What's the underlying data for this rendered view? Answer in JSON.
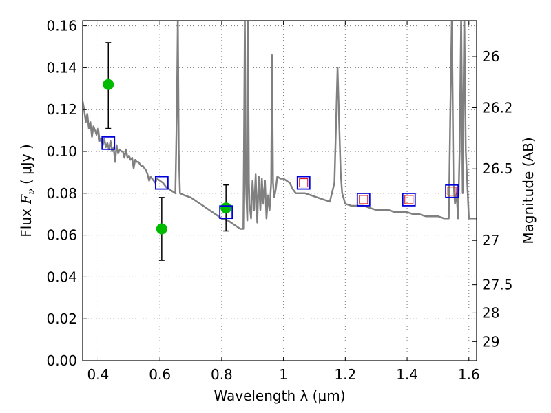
{
  "chart_data": {
    "type": "scatter",
    "title": "",
    "xlabel": "Wavelength  λ (μm)",
    "ylabel": {
      "prefix": "Flux  ",
      "symbol": "F",
      "subscript": "ν",
      "unit": "  ( μJy )"
    },
    "ylabel_right": "Magnitude (AB)",
    "xlim": [
      0.35,
      1.625
    ],
    "ylim": [
      0.0,
      0.1625
    ],
    "grid": true,
    "x_ticks": [
      0.4,
      0.6,
      0.8,
      1.0,
      1.2,
      1.4,
      1.6
    ],
    "x_tick_labels": [
      "0.4",
      "0.6",
      "0.8",
      "1",
      "1.2",
      "1.4",
      "1.6"
    ],
    "y_ticks": [
      0.0,
      0.02,
      0.04,
      0.06,
      0.08,
      0.1,
      0.12,
      0.14,
      0.16
    ],
    "y_tick_labels": [
      "0.00",
      "0.02",
      "0.04",
      "0.06",
      "0.08",
      "0.10",
      "0.12",
      "0.14",
      "0.16"
    ],
    "right_ticks": [
      {
        "label": "26",
        "flux": 0.1454
      },
      {
        "label": "26.2",
        "flux": 0.1209
      },
      {
        "label": "26.5",
        "flux": 0.0917
      },
      {
        "label": "27",
        "flux": 0.0575
      },
      {
        "label": "27.5",
        "flux": 0.0363
      },
      {
        "label": "28",
        "flux": 0.0229
      },
      {
        "label": "29",
        "flux": 0.0091
      }
    ],
    "colors": {
      "model": "#808080",
      "observed": "#00bb00",
      "model_photometry": "#0000dd",
      "inner_square": "#dd0000",
      "errorbar": "#000000",
      "grid": "#777777"
    },
    "series": [
      {
        "kind": "line",
        "points": [
          [
            0.35,
            0.124
          ],
          [
            0.355,
            0.12
          ],
          [
            0.36,
            0.114
          ],
          [
            0.365,
            0.118
          ],
          [
            0.37,
            0.111
          ],
          [
            0.375,
            0.114
          ],
          [
            0.38,
            0.107
          ],
          [
            0.385,
            0.112
          ],
          [
            0.39,
            0.11
          ],
          [
            0.395,
            0.108
          ],
          [
            0.4,
            0.111
          ],
          [
            0.405,
            0.105
          ],
          [
            0.41,
            0.106
          ],
          [
            0.415,
            0.103
          ],
          [
            0.42,
            0.106
          ],
          [
            0.425,
            0.102
          ],
          [
            0.43,
            0.104
          ],
          [
            0.435,
            0.101
          ],
          [
            0.44,
            0.105
          ],
          [
            0.445,
            0.1
          ],
          [
            0.45,
            0.102
          ],
          [
            0.455,
            0.095
          ],
          [
            0.46,
            0.103
          ],
          [
            0.465,
            0.099
          ],
          [
            0.47,
            0.101
          ],
          [
            0.475,
            0.1
          ],
          [
            0.48,
            0.1
          ],
          [
            0.485,
            0.097
          ],
          [
            0.49,
            0.101
          ],
          [
            0.495,
            0.097
          ],
          [
            0.5,
            0.098
          ],
          [
            0.505,
            0.096
          ],
          [
            0.51,
            0.097
          ],
          [
            0.515,
            0.092
          ],
          [
            0.52,
            0.096
          ],
          [
            0.525,
            0.095
          ],
          [
            0.53,
            0.095
          ],
          [
            0.535,
            0.094
          ],
          [
            0.54,
            0.093
          ],
          [
            0.545,
            0.093
          ],
          [
            0.55,
            0.092
          ],
          [
            0.555,
            0.091
          ],
          [
            0.56,
            0.089
          ],
          [
            0.565,
            0.086
          ],
          [
            0.57,
            0.088
          ],
          [
            0.575,
            0.087
          ],
          [
            0.58,
            0.086
          ],
          [
            0.585,
            0.085
          ],
          [
            0.59,
            0.087
          ],
          [
            0.6,
            0.086
          ],
          [
            0.61,
            0.085
          ],
          [
            0.62,
            0.083
          ],
          [
            0.63,
            0.082
          ],
          [
            0.64,
            0.081
          ],
          [
            0.65,
            0.08
          ],
          [
            0.655,
            0.12
          ],
          [
            0.658,
            0.165
          ],
          [
            0.661,
            0.1
          ],
          [
            0.665,
            0.08
          ],
          [
            0.68,
            0.079
          ],
          [
            0.7,
            0.078
          ],
          [
            0.72,
            0.076
          ],
          [
            0.74,
            0.074
          ],
          [
            0.76,
            0.072
          ],
          [
            0.78,
            0.07
          ],
          [
            0.8,
            0.068
          ],
          [
            0.82,
            0.067
          ],
          [
            0.84,
            0.065
          ],
          [
            0.86,
            0.063
          ],
          [
            0.87,
            0.063
          ],
          [
            0.872,
            0.1
          ],
          [
            0.875,
            0.165
          ],
          [
            0.878,
            0.09
          ],
          [
            0.88,
            0.078
          ],
          [
            0.883,
            0.067
          ],
          [
            0.885,
            0.165
          ],
          [
            0.888,
            0.085
          ],
          [
            0.89,
            0.075
          ],
          [
            0.895,
            0.068
          ],
          [
            0.9,
            0.086
          ],
          [
            0.905,
            0.072
          ],
          [
            0.91,
            0.089
          ],
          [
            0.915,
            0.066
          ],
          [
            0.92,
            0.088
          ],
          [
            0.925,
            0.072
          ],
          [
            0.93,
            0.087
          ],
          [
            0.935,
            0.075
          ],
          [
            0.94,
            0.086
          ],
          [
            0.945,
            0.068
          ],
          [
            0.95,
            0.079
          ],
          [
            0.955,
            0.072
          ],
          [
            0.96,
            0.085
          ],
          [
            0.963,
            0.146
          ],
          [
            0.966,
            0.085
          ],
          [
            0.97,
            0.078
          ],
          [
            0.975,
            0.082
          ],
          [
            0.98,
            0.088
          ],
          [
            0.99,
            0.087
          ],
          [
            1.0,
            0.087
          ],
          [
            1.01,
            0.086
          ],
          [
            1.02,
            0.085
          ],
          [
            1.03,
            0.082
          ],
          [
            1.04,
            0.08
          ],
          [
            1.05,
            0.08
          ],
          [
            1.07,
            0.08
          ],
          [
            1.09,
            0.079
          ],
          [
            1.11,
            0.078
          ],
          [
            1.13,
            0.077
          ],
          [
            1.15,
            0.076
          ],
          [
            1.165,
            0.085
          ],
          [
            1.175,
            0.14
          ],
          [
            1.185,
            0.09
          ],
          [
            1.19,
            0.08
          ],
          [
            1.2,
            0.075
          ],
          [
            1.22,
            0.074
          ],
          [
            1.24,
            0.074
          ],
          [
            1.26,
            0.074
          ],
          [
            1.28,
            0.073
          ],
          [
            1.3,
            0.072
          ],
          [
            1.32,
            0.072
          ],
          [
            1.34,
            0.072
          ],
          [
            1.36,
            0.071
          ],
          [
            1.38,
            0.071
          ],
          [
            1.4,
            0.071
          ],
          [
            1.42,
            0.07
          ],
          [
            1.44,
            0.07
          ],
          [
            1.46,
            0.069
          ],
          [
            1.48,
            0.069
          ],
          [
            1.5,
            0.069
          ],
          [
            1.52,
            0.068
          ],
          [
            1.535,
            0.068
          ],
          [
            1.54,
            0.12
          ],
          [
            1.545,
            0.165
          ],
          [
            1.55,
            0.085
          ],
          [
            1.555,
            0.075
          ],
          [
            1.56,
            0.08
          ],
          [
            1.565,
            0.068
          ],
          [
            1.57,
            0.1
          ],
          [
            1.575,
            0.165
          ],
          [
            1.58,
            0.08
          ],
          [
            1.585,
            0.165
          ],
          [
            1.59,
            0.1
          ],
          [
            1.6,
            0.068
          ],
          [
            1.61,
            0.068
          ],
          [
            1.625,
            0.068
          ]
        ]
      },
      {
        "kind": "model_photometry",
        "points": [
          {
            "x": 0.433,
            "y": 0.104
          },
          {
            "x": 0.606,
            "y": 0.085
          },
          {
            "x": 0.814,
            "y": 0.071
          },
          {
            "x": 1.065,
            "y": 0.085,
            "inner": true
          },
          {
            "x": 1.259,
            "y": 0.077,
            "inner": true
          },
          {
            "x": 1.406,
            "y": 0.077,
            "inner": true
          },
          {
            "x": 1.545,
            "y": 0.081,
            "inner": true
          }
        ]
      },
      {
        "kind": "observed",
        "points": [
          {
            "x": 0.433,
            "y": 0.132,
            "err_low": 0.111,
            "err_high": 0.152
          },
          {
            "x": 0.606,
            "y": 0.063,
            "err_low": 0.048,
            "err_high": 0.078
          },
          {
            "x": 0.814,
            "y": 0.073,
            "err_low": 0.062,
            "err_high": 0.084
          }
        ]
      }
    ]
  }
}
